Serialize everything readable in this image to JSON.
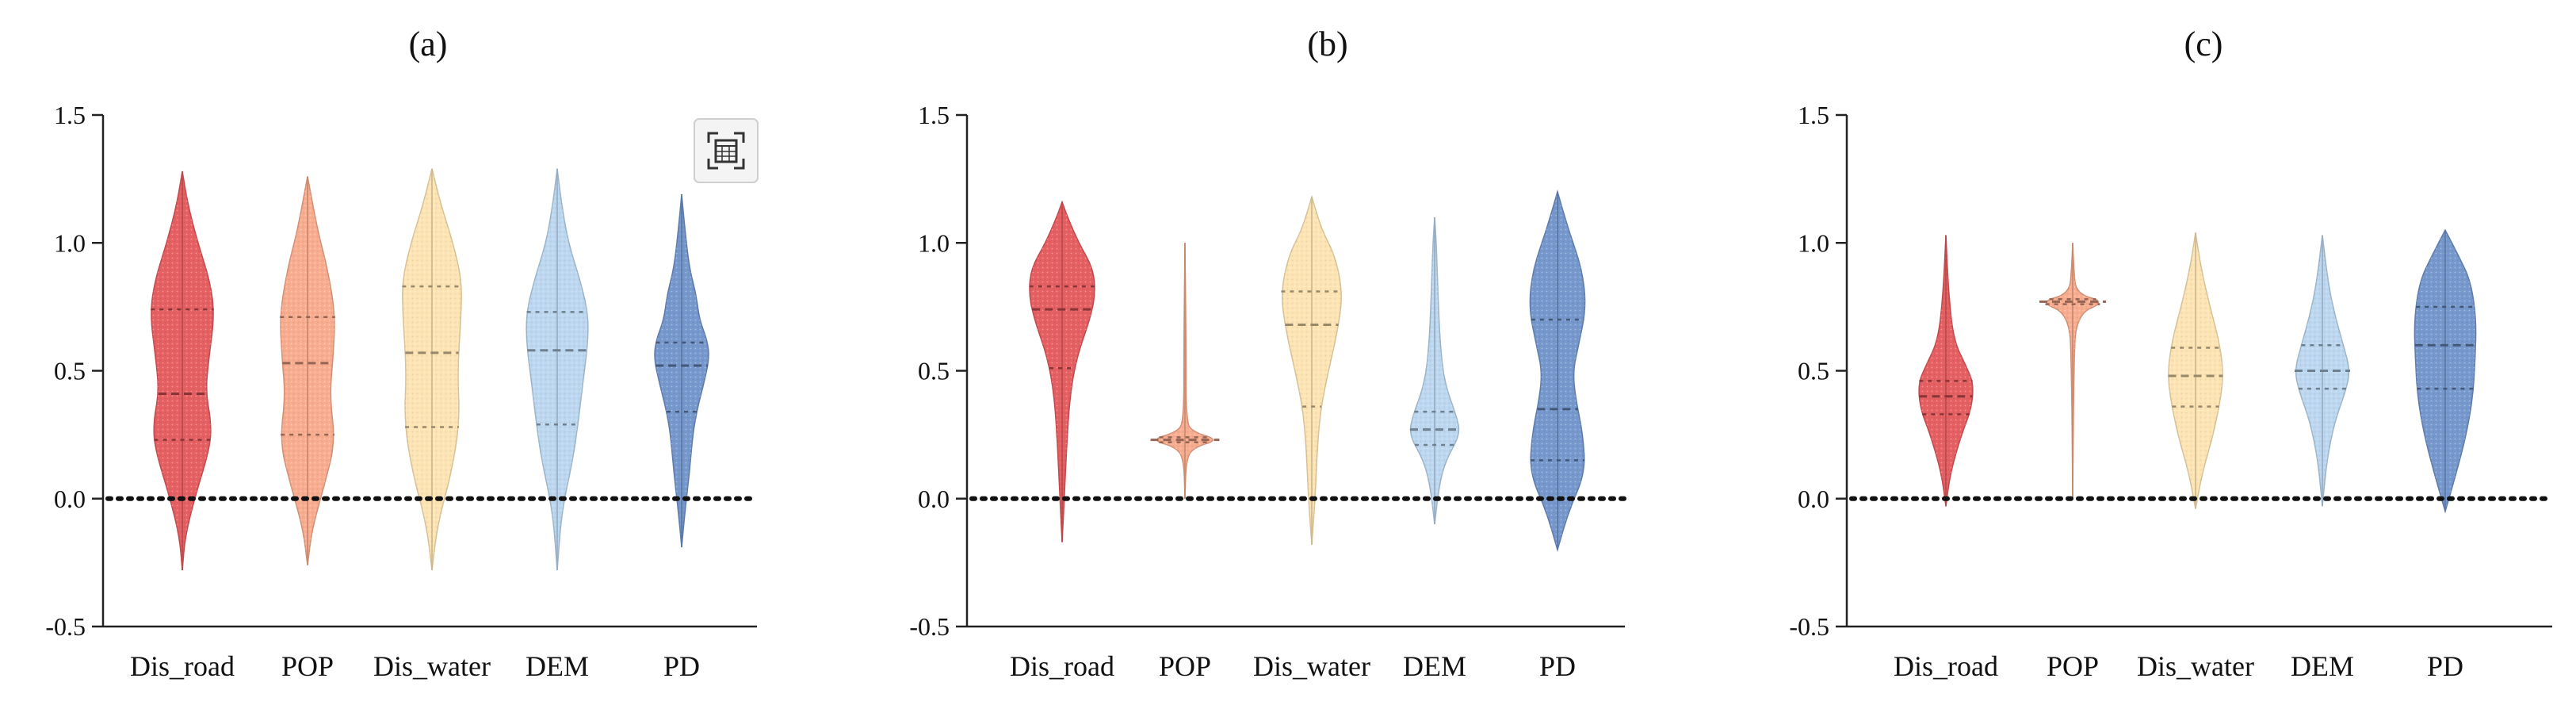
{
  "colors": {
    "Dis_road": "#e4575a",
    "POP": "#f8a98a",
    "Dis_water": "#fde3b0",
    "DEM": "#b8d5ee",
    "PD": "#6f92c9"
  },
  "toolbar": {
    "calculator_icon": "calculator-icon"
  },
  "chart_data": [
    {
      "type": "violin",
      "title": "(a)",
      "ylim": [
        -0.5,
        1.5
      ],
      "yticks": [
        "-0.5",
        "0.0",
        "0.5",
        "1.0",
        "1.5"
      ],
      "reference_line": 0.0,
      "categories": [
        "Dis_road",
        "POP",
        "Dis_water",
        "DEM",
        "PD"
      ],
      "series": [
        {
          "name": "Dis_road",
          "range": [
            -0.28,
            1.28
          ],
          "quartiles": [
            0.23,
            0.41,
            0.74
          ],
          "profile": [
            [
              -0.28,
              0.0
            ],
            [
              -0.15,
              0.05
            ],
            [
              0.0,
              0.22
            ],
            [
              0.2,
              0.5
            ],
            [
              0.3,
              0.52
            ],
            [
              0.42,
              0.42
            ],
            [
              0.55,
              0.48
            ],
            [
              0.72,
              0.58
            ],
            [
              0.85,
              0.5
            ],
            [
              1.0,
              0.28
            ],
            [
              1.15,
              0.1
            ],
            [
              1.28,
              0.0
            ]
          ]
        },
        {
          "name": "POP",
          "range": [
            -0.26,
            1.26
          ],
          "quartiles": [
            0.25,
            0.53,
            0.71
          ],
          "profile": [
            [
              -0.26,
              0.0
            ],
            [
              -0.12,
              0.08
            ],
            [
              0.05,
              0.3
            ],
            [
              0.22,
              0.5
            ],
            [
              0.4,
              0.4
            ],
            [
              0.55,
              0.46
            ],
            [
              0.72,
              0.5
            ],
            [
              0.9,
              0.36
            ],
            [
              1.05,
              0.18
            ],
            [
              1.26,
              0.0
            ]
          ]
        },
        {
          "name": "Dis_water",
          "range": [
            -0.28,
            1.29
          ],
          "quartiles": [
            0.28,
            0.57,
            0.83
          ],
          "profile": [
            [
              -0.28,
              0.0
            ],
            [
              -0.1,
              0.1
            ],
            [
              0.1,
              0.35
            ],
            [
              0.3,
              0.5
            ],
            [
              0.5,
              0.46
            ],
            [
              0.7,
              0.52
            ],
            [
              0.85,
              0.54
            ],
            [
              1.0,
              0.38
            ],
            [
              1.15,
              0.16
            ],
            [
              1.29,
              0.0
            ]
          ]
        },
        {
          "name": "DEM",
          "range": [
            -0.28,
            1.29
          ],
          "quartiles": [
            0.29,
            0.58,
            0.73
          ],
          "profile": [
            [
              -0.28,
              0.0
            ],
            [
              -0.05,
              0.08
            ],
            [
              0.15,
              0.28
            ],
            [
              0.3,
              0.38
            ],
            [
              0.45,
              0.46
            ],
            [
              0.6,
              0.55
            ],
            [
              0.72,
              0.56
            ],
            [
              0.85,
              0.42
            ],
            [
              1.0,
              0.2
            ],
            [
              1.15,
              0.08
            ],
            [
              1.29,
              0.0
            ]
          ]
        },
        {
          "name": "PD",
          "range": [
            -0.19,
            1.19
          ],
          "quartiles": [
            0.34,
            0.52,
            0.61
          ],
          "profile": [
            [
              -0.19,
              0.0
            ],
            [
              -0.05,
              0.06
            ],
            [
              0.1,
              0.14
            ],
            [
              0.25,
              0.2
            ],
            [
              0.35,
              0.28
            ],
            [
              0.45,
              0.4
            ],
            [
              0.55,
              0.5
            ],
            [
              0.62,
              0.46
            ],
            [
              0.7,
              0.32
            ],
            [
              0.8,
              0.26
            ],
            [
              0.9,
              0.14
            ],
            [
              1.05,
              0.06
            ],
            [
              1.19,
              0.0
            ]
          ]
        }
      ]
    },
    {
      "type": "violin",
      "title": "(b)",
      "ylim": [
        -0.5,
        1.5
      ],
      "yticks": [
        "-0.5",
        "0.0",
        "0.5",
        "1.0",
        "1.5"
      ],
      "reference_line": 0.0,
      "categories": [
        "Dis_road",
        "POP",
        "Dis_water",
        "DEM",
        "PD"
      ],
      "series": [
        {
          "name": "Dis_road",
          "range": [
            -0.17,
            1.16
          ],
          "quartiles": [
            0.51,
            0.74,
            0.83
          ],
          "profile": [
            [
              -0.17,
              0.0
            ],
            [
              0.0,
              0.04
            ],
            [
              0.2,
              0.08
            ],
            [
              0.4,
              0.14
            ],
            [
              0.55,
              0.26
            ],
            [
              0.7,
              0.5
            ],
            [
              0.8,
              0.6
            ],
            [
              0.9,
              0.56
            ],
            [
              1.0,
              0.3
            ],
            [
              1.1,
              0.1
            ],
            [
              1.16,
              0.0
            ]
          ]
        },
        {
          "name": "POP",
          "range": [
            0.0,
            1.0
          ],
          "quartiles": [
            0.22,
            0.23,
            0.24
          ],
          "profile": [
            [
              0.0,
              0.0
            ],
            [
              0.15,
              0.02
            ],
            [
              0.2,
              0.15
            ],
            [
              0.23,
              0.62
            ],
            [
              0.26,
              0.15
            ],
            [
              0.3,
              0.02
            ],
            [
              0.6,
              0.02
            ],
            [
              1.0,
              0.0
            ]
          ]
        },
        {
          "name": "Dis_water",
          "range": [
            -0.18,
            1.18
          ],
          "quartiles": [
            0.36,
            0.68,
            0.81
          ],
          "profile": [
            [
              -0.18,
              0.0
            ],
            [
              0.0,
              0.06
            ],
            [
              0.2,
              0.1
            ],
            [
              0.35,
              0.16
            ],
            [
              0.5,
              0.3
            ],
            [
              0.65,
              0.46
            ],
            [
              0.8,
              0.56
            ],
            [
              0.95,
              0.42
            ],
            [
              1.05,
              0.18
            ],
            [
              1.18,
              0.0
            ]
          ]
        },
        {
          "name": "DEM",
          "range": [
            -0.1,
            1.1
          ],
          "quartiles": [
            0.21,
            0.27,
            0.34
          ],
          "profile": [
            [
              -0.1,
              0.0
            ],
            [
              0.05,
              0.08
            ],
            [
              0.15,
              0.2
            ],
            [
              0.25,
              0.46
            ],
            [
              0.32,
              0.4
            ],
            [
              0.45,
              0.18
            ],
            [
              0.6,
              0.1
            ],
            [
              0.8,
              0.06
            ],
            [
              1.0,
              0.03
            ],
            [
              1.1,
              0.0
            ]
          ]
        },
        {
          "name": "PD",
          "range": [
            -0.2,
            1.2
          ],
          "quartiles": [
            0.15,
            0.35,
            0.7
          ],
          "profile": [
            [
              -0.2,
              0.0
            ],
            [
              -0.05,
              0.2
            ],
            [
              0.1,
              0.5
            ],
            [
              0.25,
              0.46
            ],
            [
              0.4,
              0.32
            ],
            [
              0.5,
              0.28
            ],
            [
              0.6,
              0.38
            ],
            [
              0.75,
              0.52
            ],
            [
              0.9,
              0.44
            ],
            [
              1.05,
              0.2
            ],
            [
              1.2,
              0.0
            ]
          ]
        }
      ]
    },
    {
      "type": "violin",
      "title": "(c)",
      "ylim": [
        -0.5,
        1.5
      ],
      "yticks": [
        "-0.5",
        "0.0",
        "0.5",
        "1.0",
        "1.5"
      ],
      "reference_line": 0.0,
      "categories": [
        "Dis_road",
        "POP",
        "Dis_water",
        "DEM",
        "PD"
      ],
      "series": [
        {
          "name": "Dis_road",
          "range": [
            -0.03,
            1.03
          ],
          "quartiles": [
            0.33,
            0.4,
            0.46
          ],
          "profile": [
            [
              -0.03,
              0.0
            ],
            [
              0.1,
              0.08
            ],
            [
              0.25,
              0.28
            ],
            [
              0.35,
              0.46
            ],
            [
              0.45,
              0.5
            ],
            [
              0.52,
              0.36
            ],
            [
              0.62,
              0.14
            ],
            [
              0.8,
              0.05
            ],
            [
              1.03,
              0.0
            ]
          ]
        },
        {
          "name": "POP",
          "range": [
            0.0,
            1.0
          ],
          "quartiles": [
            0.76,
            0.77,
            0.78
          ],
          "profile": [
            [
              0.0,
              0.0
            ],
            [
              0.5,
              0.02
            ],
            [
              0.72,
              0.06
            ],
            [
              0.77,
              0.6
            ],
            [
              0.8,
              0.06
            ],
            [
              0.9,
              0.02
            ],
            [
              1.0,
              0.0
            ]
          ]
        },
        {
          "name": "Dis_water",
          "range": [
            -0.04,
            1.04
          ],
          "quartiles": [
            0.36,
            0.48,
            0.59
          ],
          "profile": [
            [
              -0.04,
              0.0
            ],
            [
              0.1,
              0.12
            ],
            [
              0.25,
              0.32
            ],
            [
              0.4,
              0.46
            ],
            [
              0.5,
              0.5
            ],
            [
              0.62,
              0.42
            ],
            [
              0.75,
              0.26
            ],
            [
              0.9,
              0.1
            ],
            [
              1.04,
              0.0
            ]
          ]
        },
        {
          "name": "DEM",
          "range": [
            -0.03,
            1.03
          ],
          "quartiles": [
            0.43,
            0.5,
            0.6
          ],
          "profile": [
            [
              -0.03,
              0.0
            ],
            [
              0.15,
              0.08
            ],
            [
              0.3,
              0.22
            ],
            [
              0.42,
              0.42
            ],
            [
              0.5,
              0.5
            ],
            [
              0.6,
              0.38
            ],
            [
              0.72,
              0.22
            ],
            [
              0.85,
              0.1
            ],
            [
              1.03,
              0.0
            ]
          ]
        },
        {
          "name": "PD",
          "range": [
            -0.05,
            1.05
          ],
          "quartiles": [
            0.43,
            0.6,
            0.75
          ],
          "profile": [
            [
              -0.05,
              0.0
            ],
            [
              0.1,
              0.2
            ],
            [
              0.25,
              0.38
            ],
            [
              0.4,
              0.5
            ],
            [
              0.55,
              0.54
            ],
            [
              0.7,
              0.56
            ],
            [
              0.85,
              0.46
            ],
            [
              0.95,
              0.24
            ],
            [
              1.05,
              0.0
            ]
          ]
        }
      ]
    }
  ]
}
